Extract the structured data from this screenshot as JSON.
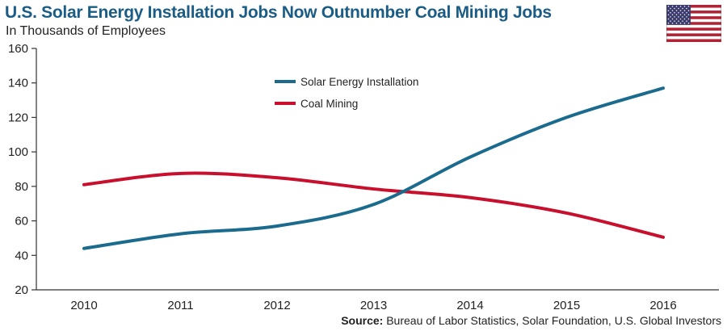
{
  "header": {
    "title": "U.S. Solar Energy Installation Jobs Now Outnumber Coal Mining Jobs",
    "subtitle": "In Thousands of Employees"
  },
  "colors": {
    "solar": "#1b6b8f",
    "coal": "#c8102e",
    "title": "#1b5c84",
    "flag_red": "#b22234",
    "flag_blue": "#3c3b6e"
  },
  "icons": {
    "flag": "us-flag-icon"
  },
  "source": {
    "label": "Source:",
    "text": "Bureau of Labor Statistics, Solar Foundation, U.S. Global Investors"
  },
  "chart_data": {
    "type": "line",
    "title": "U.S. Solar Energy Installation Jobs Now Outnumber Coal Mining Jobs",
    "subtitle": "In Thousands of Employees",
    "xlabel": "",
    "ylabel": "",
    "x": [
      "2010",
      "2011",
      "2012",
      "2013",
      "2014",
      "2015",
      "2016"
    ],
    "series": [
      {
        "name": "Solar Energy Installation",
        "values": [
          44,
          52.5,
          57,
          69.5,
          97,
          120,
          137
        ]
      },
      {
        "name": "Coal Mining",
        "values": [
          81,
          87.5,
          85,
          78.5,
          73.5,
          64.5,
          50.5
        ]
      }
    ],
    "ylim": [
      20,
      160
    ],
    "yticks": [
      20,
      40,
      60,
      80,
      100,
      120,
      140,
      160
    ],
    "legend_position": "top-center",
    "grid": false
  }
}
